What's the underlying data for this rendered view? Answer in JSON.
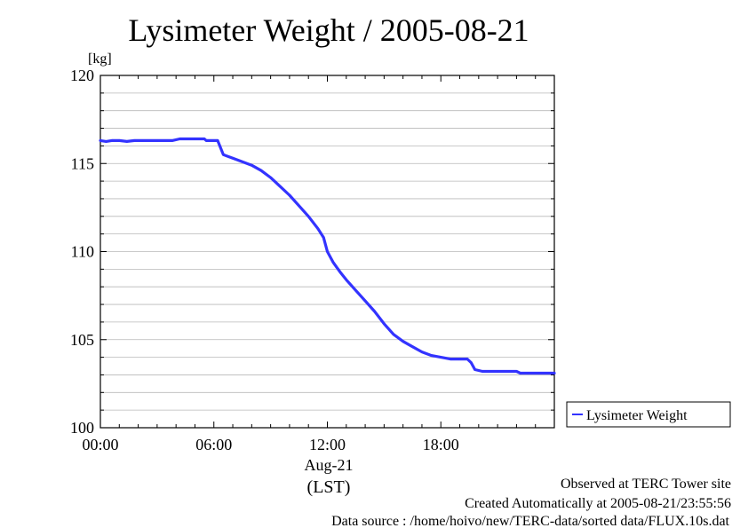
{
  "chart_data": {
    "type": "line",
    "title": "Lysimeter Weight / 2005-08-21",
    "y_unit": "[kg]",
    "ylim": [
      100,
      120
    ],
    "y_ticks": [
      100,
      105,
      110,
      115,
      120
    ],
    "y_minor_step": 1,
    "xlim_hours": [
      0,
      24
    ],
    "x_ticks_hours": [
      0,
      6,
      12,
      18
    ],
    "x_tick_labels": [
      "00:00",
      "06:00",
      "12:00",
      "18:00"
    ],
    "x_date_label": "Aug-21",
    "x_timezone_label": "(LST)",
    "grid": true,
    "legend_position": "right",
    "series": [
      {
        "name": "Lysimeter Weight",
        "color": "#3333ff",
        "hours": [
          0,
          0.3,
          0.6,
          1.0,
          1.4,
          1.8,
          2.2,
          3.0,
          3.8,
          4.2,
          5.0,
          5.5,
          5.6,
          6.2,
          6.5,
          7.0,
          7.5,
          8.0,
          8.5,
          9.0,
          9.5,
          10.0,
          10.5,
          11.0,
          11.5,
          11.8,
          12.0,
          12.3,
          12.7,
          13.0,
          13.5,
          14.0,
          14.5,
          15.0,
          15.5,
          16.0,
          16.5,
          17.0,
          17.5,
          18.0,
          18.5,
          19.0,
          19.4,
          19.6,
          19.8,
          20.2,
          21.0,
          22.0,
          22.2,
          22.6,
          23.2,
          24.0
        ],
        "values": [
          116.3,
          116.25,
          116.3,
          116.3,
          116.25,
          116.3,
          116.3,
          116.3,
          116.3,
          116.4,
          116.4,
          116.4,
          116.3,
          116.3,
          115.5,
          115.3,
          115.1,
          114.9,
          114.6,
          114.2,
          113.7,
          113.2,
          112.6,
          112.0,
          111.3,
          110.8,
          110.0,
          109.4,
          108.8,
          108.4,
          107.8,
          107.2,
          106.6,
          105.9,
          105.3,
          104.9,
          104.6,
          104.3,
          104.1,
          104.0,
          103.9,
          103.9,
          103.9,
          103.7,
          103.3,
          103.2,
          103.2,
          103.2,
          103.1,
          103.1,
          103.1,
          103.1
        ]
      }
    ]
  },
  "footer": {
    "line1": "Observed at TERC Tower site",
    "line2": "Created Automatically at 2005-08-21/23:55:56",
    "line3": "Data source : /home/hoivo/new/TERC-data/sorted  data/FLUX.10s.dat"
  }
}
